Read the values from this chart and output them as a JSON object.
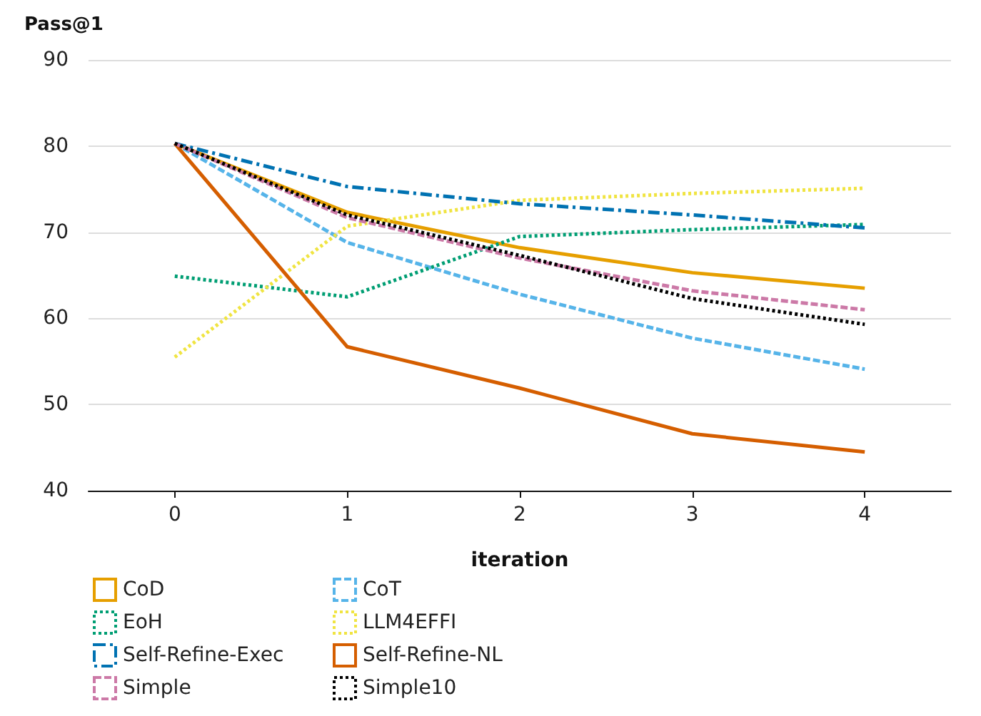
{
  "chart_data": {
    "type": "line",
    "xlabel": "iteration",
    "ylabel": "Pass@1",
    "x": [
      0,
      1,
      2,
      3,
      4
    ],
    "xlim": [
      -0.5,
      4.5
    ],
    "xticks": [
      0,
      1,
      2,
      3,
      4
    ],
    "ylim": [
      40,
      90
    ],
    "yticks": [
      40,
      50,
      60,
      70,
      80,
      90
    ],
    "grid": "y",
    "legend": "bottom",
    "marker": "none",
    "series": [
      {
        "name": "CoD",
        "color": "#e69f00",
        "line_style": "solid",
        "values": [
          80.3,
          72.3,
          68.2,
          65.3,
          63.5
        ]
      },
      {
        "name": "CoT",
        "color": "#56b4e9",
        "line_style": "dashed",
        "values": [
          80.3,
          68.8,
          62.8,
          57.7,
          54.1
        ]
      },
      {
        "name": "EoH",
        "color": "#009e73",
        "line_style": "dotted",
        "values": [
          64.9,
          62.5,
          69.5,
          70.3,
          70.9
        ]
      },
      {
        "name": "LLM4EFFI",
        "color": "#f0e442",
        "line_style": "dotted",
        "values": [
          55.5,
          70.7,
          73.7,
          74.5,
          75.1
        ]
      },
      {
        "name": "Self-Refine-Exec",
        "color": "#0072b2",
        "line_style": "dashdot",
        "values": [
          80.3,
          75.3,
          73.3,
          72.0,
          70.5
        ]
      },
      {
        "name": "Self-Refine-NL",
        "color": "#d55e00",
        "line_style": "solid",
        "values": [
          80.3,
          56.7,
          51.9,
          46.6,
          44.5
        ]
      },
      {
        "name": "Simple",
        "color": "#cc79a7",
        "line_style": "dashed",
        "values": [
          80.3,
          71.7,
          67.0,
          63.2,
          61.0
        ]
      },
      {
        "name": "Simple10",
        "color": "#000000",
        "line_style": "dotted",
        "values": [
          80.3,
          72.0,
          67.3,
          62.3,
          59.3
        ]
      }
    ]
  }
}
